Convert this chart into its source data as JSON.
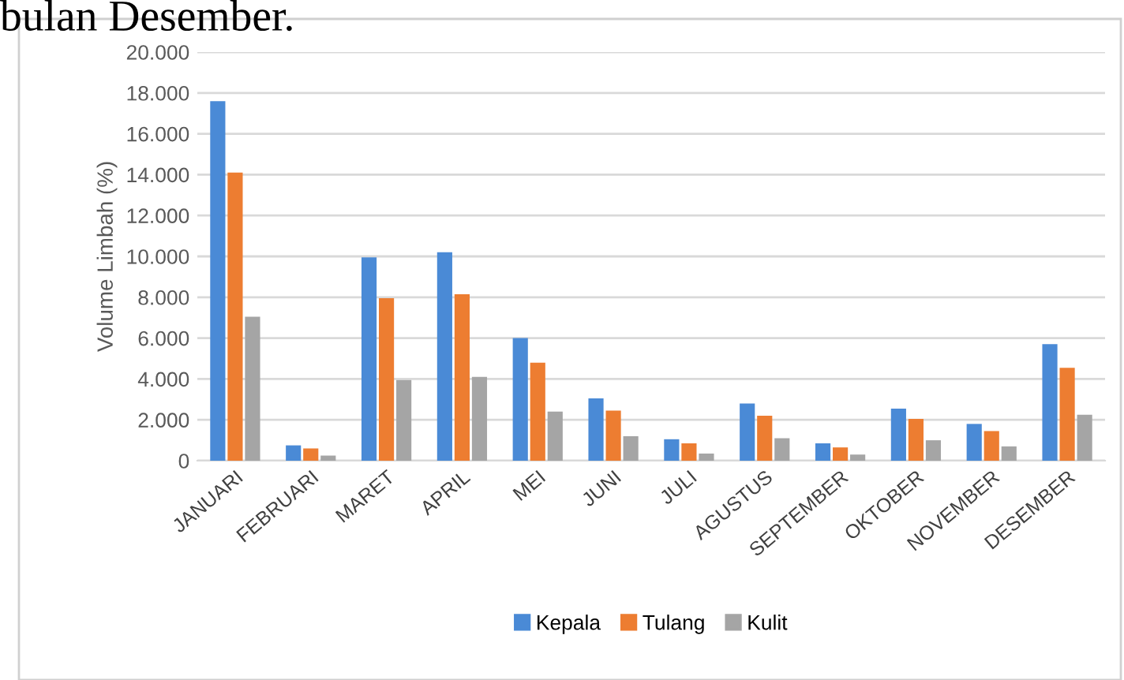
{
  "chart_data": {
    "type": "bar",
    "ylabel": "Volume Limbah (%)",
    "annotations": [
      "bulan Desember."
    ],
    "categories": [
      "JANUARI",
      "FEBRUARI",
      "MARET",
      "APRIL",
      "MEI",
      "JUNI",
      "JULI",
      "AGUSTUS",
      "SEPTEMBER",
      "OKTOBER",
      "NOVEMBER",
      "DESEMBER"
    ],
    "series": [
      {
        "name": "Kepala",
        "color": "#4a8ad6",
        "values": [
          17600,
          750,
          9950,
          10200,
          6000,
          3050,
          1050,
          2800,
          850,
          2550,
          1800,
          5700
        ]
      },
      {
        "name": "Tulang",
        "color": "#ed7d31",
        "values": [
          14100,
          600,
          7950,
          8150,
          4800,
          2450,
          850,
          2200,
          650,
          2050,
          1450,
          4550
        ]
      },
      {
        "name": "Kulit",
        "color": "#a5a5a5",
        "values": [
          7050,
          250,
          3950,
          4100,
          2400,
          1200,
          350,
          1100,
          300,
          1000,
          700,
          2250
        ]
      }
    ],
    "ylim": [
      0,
      20000
    ],
    "yticks": [
      0,
      {
        "value": 2000,
        "label": "2.000"
      },
      {
        "value": 4000,
        "label": "4.000"
      },
      {
        "value": 6000,
        "label": "6.000"
      },
      {
        "value": 8000,
        "label": "8.000"
      },
      {
        "value": 10000,
        "label": "10.000"
      },
      {
        "value": 12000,
        "label": "12.000"
      },
      {
        "value": 14000,
        "label": "14.000"
      },
      {
        "value": 16000,
        "label": "16.000"
      },
      {
        "value": 18000,
        "label": "18.000"
      },
      {
        "value": 20000,
        "label": "20.000"
      }
    ],
    "grid": "y",
    "legend": "bottom"
  }
}
